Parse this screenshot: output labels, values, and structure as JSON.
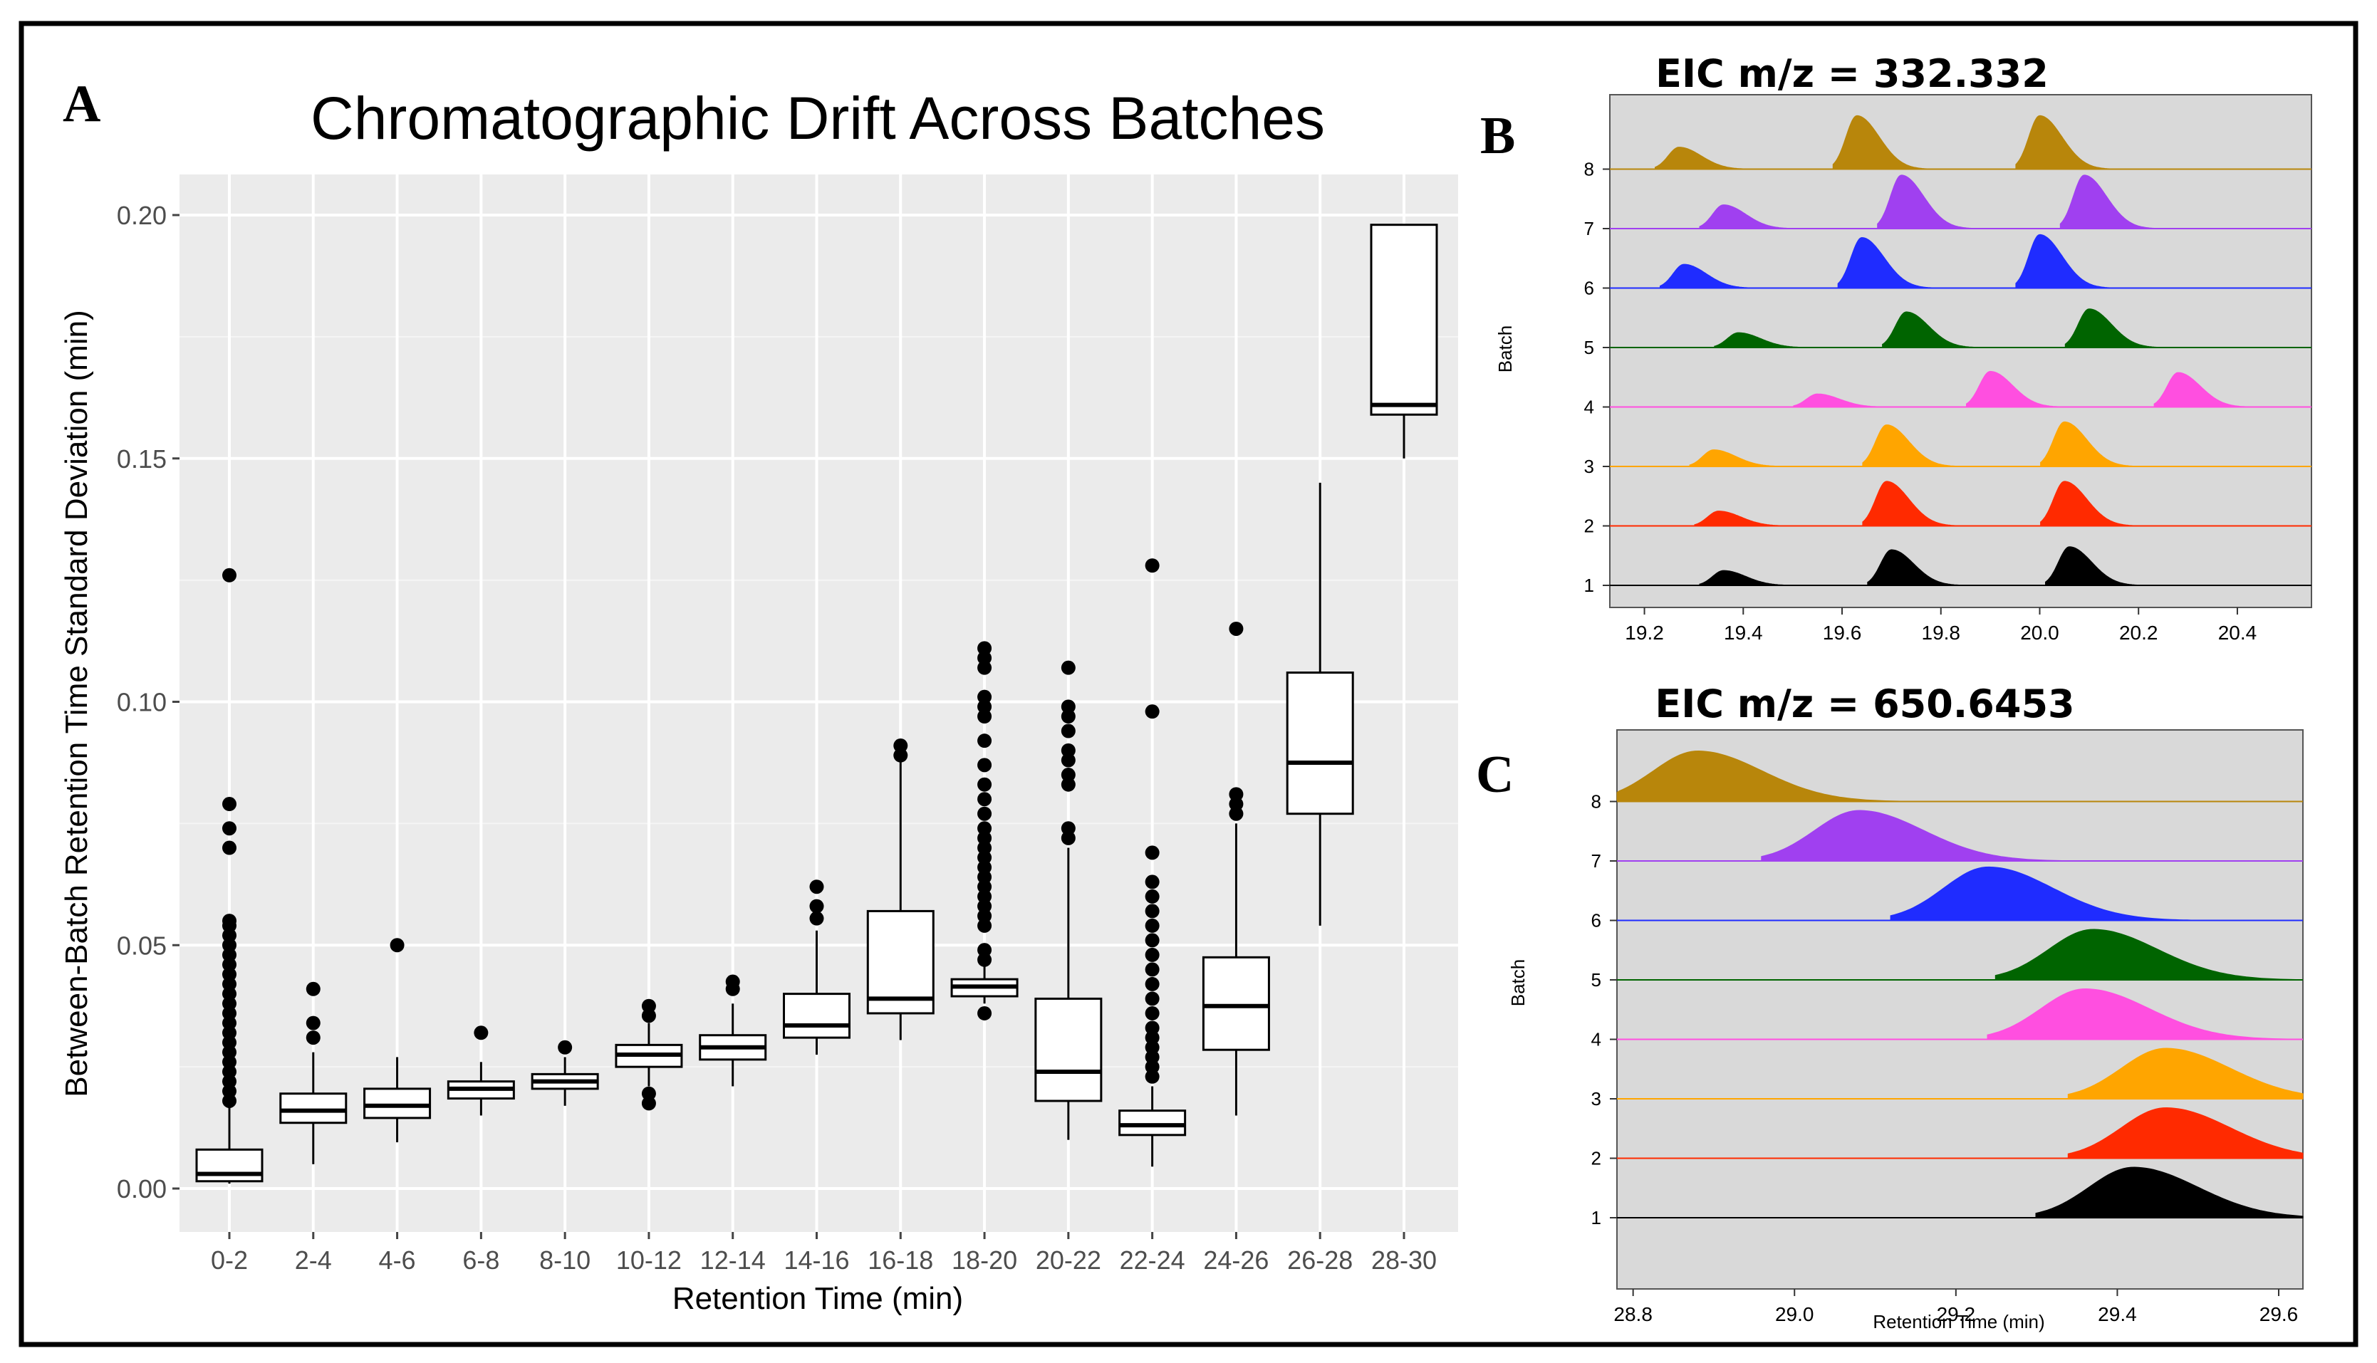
{
  "panels": {
    "a_label": "A",
    "b_label": "B",
    "c_label": "C"
  },
  "chart_data": [
    {
      "type": "box",
      "title": "Chromatographic Drift Across Batches",
      "xlabel": "Retention Time (min)",
      "ylabel": "Between-Batch Retention Time Standard Deviation (min)",
      "ylim": [
        0,
        0.21
      ],
      "yticks": [
        0.0,
        0.05,
        0.1,
        0.15,
        0.2
      ],
      "ytick_labels": [
        "0.00",
        "0.05",
        "0.10",
        "0.15",
        "0.20"
      ],
      "grid": true,
      "categories": [
        "0-2",
        "2-4",
        "4-6",
        "6-8",
        "8-10",
        "10-12",
        "12-14",
        "14-16",
        "16-18",
        "18-20",
        "20-22",
        "22-24",
        "24-26",
        "26-28",
        "28-30"
      ],
      "boxes": [
        {
          "whisker_low": 0.001,
          "q1": 0.0015,
          "median": 0.003,
          "q3": 0.008,
          "whisker_high": 0.017,
          "outliers": [
            0.126,
            0.079,
            0.074,
            0.07,
            0.055,
            0.054,
            0.052,
            0.05,
            0.048,
            0.046,
            0.044,
            0.042,
            0.04,
            0.038,
            0.036,
            0.034,
            0.032,
            0.03,
            0.028,
            0.026,
            0.024,
            0.022,
            0.02,
            0.018
          ]
        },
        {
          "whisker_low": 0.005,
          "q1": 0.0135,
          "median": 0.016,
          "q3": 0.0195,
          "whisker_high": 0.028,
          "outliers": [
            0.041,
            0.034,
            0.031
          ]
        },
        {
          "whisker_low": 0.0095,
          "q1": 0.0145,
          "median": 0.017,
          "q3": 0.0205,
          "whisker_high": 0.027,
          "outliers": [
            0.05
          ]
        },
        {
          "whisker_low": 0.015,
          "q1": 0.0185,
          "median": 0.0205,
          "q3": 0.022,
          "whisker_high": 0.026,
          "outliers": [
            0.032
          ]
        },
        {
          "whisker_low": 0.017,
          "q1": 0.0205,
          "median": 0.022,
          "q3": 0.0235,
          "whisker_high": 0.027,
          "outliers": [
            0.029
          ]
        },
        {
          "whisker_low": 0.021,
          "q1": 0.025,
          "median": 0.0275,
          "q3": 0.0295,
          "whisker_high": 0.034,
          "outliers": [
            0.0375,
            0.0355,
            0.0195,
            0.0175
          ]
        },
        {
          "whisker_low": 0.021,
          "q1": 0.0265,
          "median": 0.029,
          "q3": 0.0315,
          "whisker_high": 0.038,
          "outliers": [
            0.0425,
            0.041
          ]
        },
        {
          "whisker_low": 0.0275,
          "q1": 0.031,
          "median": 0.0335,
          "q3": 0.04,
          "whisker_high": 0.053,
          "outliers": [
            0.062,
            0.058,
            0.0555
          ]
        },
        {
          "whisker_low": 0.0305,
          "q1": 0.036,
          "median": 0.039,
          "q3": 0.057,
          "whisker_high": 0.088,
          "outliers": [
            0.091,
            0.089
          ]
        },
        {
          "whisker_low": 0.038,
          "q1": 0.0395,
          "median": 0.0415,
          "q3": 0.043,
          "whisker_high": 0.046,
          "outliers": [
            0.111,
            0.109,
            0.107,
            0.101,
            0.099,
            0.097,
            0.092,
            0.087,
            0.083,
            0.08,
            0.077,
            0.074,
            0.072,
            0.07,
            0.068,
            0.066,
            0.064,
            0.062,
            0.06,
            0.058,
            0.056,
            0.054,
            0.049,
            0.047,
            0.036
          ]
        },
        {
          "whisker_low": 0.01,
          "q1": 0.018,
          "median": 0.024,
          "q3": 0.039,
          "whisker_high": 0.07,
          "outliers": [
            0.107,
            0.099,
            0.097,
            0.094,
            0.09,
            0.088,
            0.085,
            0.083,
            0.074,
            0.072
          ]
        },
        {
          "whisker_low": 0.0045,
          "q1": 0.011,
          "median": 0.013,
          "q3": 0.016,
          "whisker_high": 0.021,
          "outliers": [
            0.128,
            0.098,
            0.069,
            0.063,
            0.06,
            0.057,
            0.054,
            0.051,
            0.048,
            0.045,
            0.042,
            0.039,
            0.036,
            0.033,
            0.031,
            0.029,
            0.027,
            0.025,
            0.023
          ]
        },
        {
          "whisker_low": 0.015,
          "q1": 0.0285,
          "median": 0.0375,
          "q3": 0.0475,
          "whisker_high": 0.075,
          "outliers": [
            0.115,
            0.081,
            0.079,
            0.077
          ]
        },
        {
          "whisker_low": 0.054,
          "q1": 0.077,
          "median": 0.0875,
          "q3": 0.106,
          "whisker_high": 0.145,
          "outliers": []
        },
        {
          "whisker_low": 0.15,
          "q1": 0.159,
          "median": 0.161,
          "q3": 0.198,
          "whisker_high": 0.198,
          "outliers": []
        }
      ]
    },
    {
      "type": "area",
      "title": "EIC m/z = 332.332",
      "xlabel": "",
      "ylabel": "Batch",
      "xlim": [
        19.13,
        20.55
      ],
      "xticks": [
        19.2,
        19.4,
        19.6,
        19.8,
        20.0,
        20.2,
        20.4
      ],
      "xtick_labels": [
        "19.2",
        "19.4",
        "19.6",
        "19.8",
        "20.0",
        "20.2",
        "20.4"
      ],
      "batches": [
        "1",
        "2",
        "3",
        "4",
        "5",
        "6",
        "7",
        "8"
      ],
      "series": [
        {
          "name": "1",
          "color": "#000000",
          "peaks": [
            [
              19.36,
              0.25
            ],
            [
              19.7,
              0.6
            ],
            [
              20.06,
              0.65
            ]
          ]
        },
        {
          "name": "2",
          "color": "#ff2a00",
          "peaks": [
            [
              19.35,
              0.25
            ],
            [
              19.69,
              0.75
            ],
            [
              20.05,
              0.75
            ]
          ]
        },
        {
          "name": "3",
          "color": "#ffa500",
          "peaks": [
            [
              19.34,
              0.28
            ],
            [
              19.69,
              0.7
            ],
            [
              20.05,
              0.75
            ]
          ]
        },
        {
          "name": "4",
          "color": "#ff4fe0",
          "peaks": [
            [
              19.55,
              0.22
            ],
            [
              19.9,
              0.6
            ],
            [
              20.28,
              0.58
            ]
          ]
        },
        {
          "name": "5",
          "color": "#006400",
          "peaks": [
            [
              19.39,
              0.25
            ],
            [
              19.73,
              0.6
            ],
            [
              20.1,
              0.65
            ]
          ]
        },
        {
          "name": "6",
          "color": "#1f2cff",
          "peaks": [
            [
              19.28,
              0.4
            ],
            [
              19.64,
              0.85
            ],
            [
              20.0,
              0.9
            ]
          ]
        },
        {
          "name": "7",
          "color": "#a040f0",
          "peaks": [
            [
              19.36,
              0.4
            ],
            [
              19.72,
              0.9
            ],
            [
              20.09,
              0.9
            ]
          ]
        },
        {
          "name": "8",
          "color": "#b8860b",
          "peaks": [
            [
              19.27,
              0.37
            ],
            [
              19.63,
              0.9
            ],
            [
              20.0,
              0.9
            ]
          ]
        }
      ]
    },
    {
      "type": "area",
      "title": "EIC m/z = 650.6453",
      "xlabel": "Retention Time (min)",
      "ylabel": "Batch",
      "xlim": [
        28.78,
        29.63
      ],
      "xticks": [
        28.8,
        29.0,
        29.2,
        29.4,
        29.6
      ],
      "xtick_labels": [
        "28.8",
        "29.0",
        "29.2",
        "29.4",
        "29.6"
      ],
      "batches": [
        "1",
        "2",
        "3",
        "4",
        "5",
        "6",
        "7",
        "8"
      ],
      "series": [
        {
          "name": "1",
          "color": "#000000",
          "peaks": [
            [
              29.42,
              0.85
            ]
          ]
        },
        {
          "name": "2",
          "color": "#ff2a00",
          "peaks": [
            [
              29.46,
              0.85
            ]
          ]
        },
        {
          "name": "3",
          "color": "#ffa500",
          "peaks": [
            [
              29.46,
              0.85
            ]
          ]
        },
        {
          "name": "4",
          "color": "#ff4fe0",
          "peaks": [
            [
              29.36,
              0.85
            ]
          ]
        },
        {
          "name": "5",
          "color": "#006400",
          "peaks": [
            [
              29.37,
              0.85
            ]
          ]
        },
        {
          "name": "6",
          "color": "#1f2cff",
          "peaks": [
            [
              29.24,
              0.9
            ]
          ]
        },
        {
          "name": "7",
          "color": "#a040f0",
          "peaks": [
            [
              29.08,
              0.85
            ]
          ]
        },
        {
          "name": "8",
          "color": "#b8860b",
          "peaks": [
            [
              28.88,
              0.85
            ]
          ]
        }
      ]
    }
  ]
}
